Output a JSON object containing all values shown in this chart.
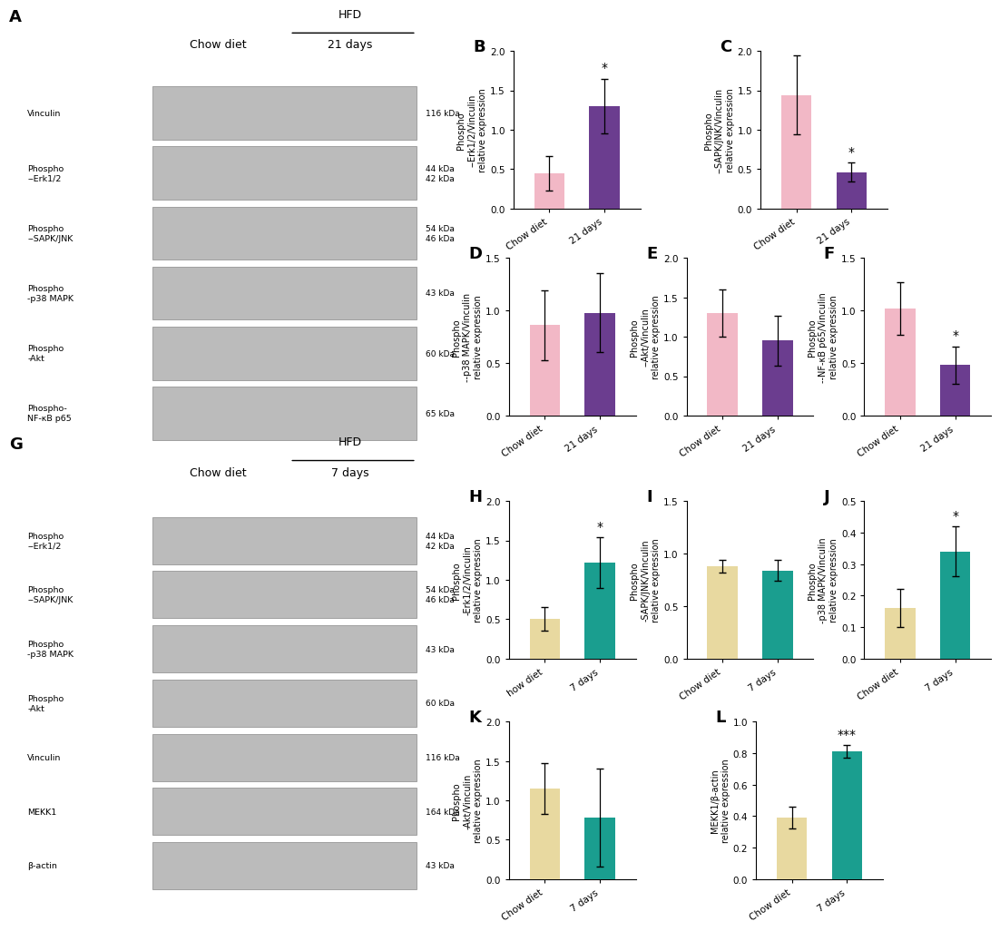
{
  "panels_top": {
    "B": {
      "title": "B",
      "ylabel": "Phospho\n--Erk1/2/Vinculin\nrelative expression",
      "categories": [
        "Chow diet",
        "21 days"
      ],
      "values": [
        0.45,
        1.3
      ],
      "errors": [
        0.22,
        0.35
      ],
      "colors": [
        "#f2b8c6",
        "#6b3d8f"
      ],
      "ylim": [
        0,
        2.0
      ],
      "yticks": [
        0.0,
        0.5,
        1.0,
        1.5,
        2.0
      ],
      "sig": {
        "bar": 1,
        "text": "*"
      }
    },
    "C": {
      "title": "C",
      "ylabel": "Phospho\n--SAPK/JNK/Vinculin\nrelative expression",
      "categories": [
        "Chow diet",
        "21 days"
      ],
      "values": [
        1.44,
        0.46
      ],
      "errors": [
        0.5,
        0.12
      ],
      "colors": [
        "#f2b8c6",
        "#6b3d8f"
      ],
      "ylim": [
        0,
        2.0
      ],
      "yticks": [
        0.0,
        0.5,
        1.0,
        1.5,
        2.0
      ],
      "sig": {
        "bar": 1,
        "text": "*"
      }
    },
    "D": {
      "title": "D",
      "ylabel": "Phospho\n--p38 MAPK/Vinculin\nrelative expression",
      "categories": [
        "Chow diet",
        "21 days"
      ],
      "values": [
        0.86,
        0.98
      ],
      "errors": [
        0.33,
        0.38
      ],
      "colors": [
        "#f2b8c6",
        "#6b3d8f"
      ],
      "ylim": [
        0,
        1.5
      ],
      "yticks": [
        0.0,
        0.5,
        1.0,
        1.5
      ],
      "sig": null
    },
    "E": {
      "title": "E",
      "ylabel": "Phospho\n--Akt/Vinculin\nrelative expression",
      "categories": [
        "Chow diet",
        "21 days"
      ],
      "values": [
        1.3,
        0.95
      ],
      "errors": [
        0.3,
        0.32
      ],
      "colors": [
        "#f2b8c6",
        "#6b3d8f"
      ],
      "ylim": [
        0,
        2.0
      ],
      "yticks": [
        0.0,
        0.5,
        1.0,
        1.5,
        2.0
      ],
      "sig": null
    },
    "F": {
      "title": "F",
      "ylabel": "Phospho\n--NF-κB p65/Vinculin\nrelative expression",
      "categories": [
        "Chow diet",
        "21 days"
      ],
      "values": [
        1.02,
        0.48
      ],
      "errors": [
        0.25,
        0.18
      ],
      "colors": [
        "#f2b8c6",
        "#6b3d8f"
      ],
      "ylim": [
        0,
        1.5
      ],
      "yticks": [
        0.0,
        0.5,
        1.0,
        1.5
      ],
      "sig": {
        "bar": 1,
        "text": "*"
      }
    }
  },
  "panels_bottom": {
    "H": {
      "title": "H",
      "ylabel": "Phospho\n-Erk1/2/Vinculin\nrelative expression",
      "categories": [
        "how diet",
        "7 days"
      ],
      "values": [
        0.5,
        1.22
      ],
      "errors": [
        0.15,
        0.32
      ],
      "colors": [
        "#e8d9a0",
        "#1a9e8f"
      ],
      "ylim": [
        0,
        2.0
      ],
      "yticks": [
        0.0,
        0.5,
        1.0,
        1.5,
        2.0
      ],
      "sig": {
        "bar": 1,
        "text": "*"
      }
    },
    "I": {
      "title": "I",
      "ylabel": "Phospho\n-SAPK/JNK/Vinculin\nrelative expression",
      "categories": [
        "Chow diet",
        "7 days"
      ],
      "values": [
        0.88,
        0.84
      ],
      "errors": [
        0.06,
        0.1
      ],
      "colors": [
        "#e8d9a0",
        "#1a9e8f"
      ],
      "ylim": [
        0,
        1.5
      ],
      "yticks": [
        0.0,
        0.5,
        1.0,
        1.5
      ],
      "sig": null
    },
    "J": {
      "title": "J",
      "ylabel": "Phospho\n-p38 MAPK/Vinculin\nrelative expression",
      "categories": [
        "Chow diet",
        "7 days"
      ],
      "values": [
        0.16,
        0.34
      ],
      "errors": [
        0.06,
        0.08
      ],
      "colors": [
        "#e8d9a0",
        "#1a9e8f"
      ],
      "ylim": [
        0,
        0.5
      ],
      "yticks": [
        0.0,
        0.1,
        0.2,
        0.3,
        0.4,
        0.5
      ],
      "sig": {
        "bar": 1,
        "text": "*"
      }
    },
    "K": {
      "title": "K",
      "ylabel": "Phospho\n-Akt/Vinculin\nrelative expression",
      "categories": [
        "Chow diet",
        "7 days"
      ],
      "values": [
        1.15,
        0.78
      ],
      "errors": [
        0.32,
        0.62
      ],
      "colors": [
        "#e8d9a0",
        "#1a9e8f"
      ],
      "ylim": [
        0,
        2.0
      ],
      "yticks": [
        0.0,
        0.5,
        1.0,
        1.5,
        2.0
      ],
      "sig": null
    },
    "L": {
      "title": "L",
      "ylabel": "MEKK1/β-actin\nrelative expression",
      "categories": [
        "Chow diet",
        "7 days"
      ],
      "values": [
        0.39,
        0.81
      ],
      "errors": [
        0.07,
        0.04
      ],
      "colors": [
        "#e8d9a0",
        "#1a9e8f"
      ],
      "ylim": [
        0,
        1.0
      ],
      "yticks": [
        0.0,
        0.2,
        0.4,
        0.6,
        0.8,
        1.0
      ],
      "sig": {
        "bar": 1,
        "text": "***"
      }
    }
  },
  "blot_A": {
    "title": "A",
    "labels": [
      "Vinculin",
      "Phospho\n--Erk1/2",
      "Phospho\n--SAPK/JNK",
      "Phospho\n-p38 MAPK",
      "Phospho\n-Akt",
      "Phospho-\nNF-κB p65"
    ],
    "kda": [
      "116 kDa",
      "44 kDa\n42 kDa",
      "54 kDa\n46 kDa",
      "43 kDa",
      "60 kDa",
      "65 kDa"
    ],
    "header_chow": "Chow diet",
    "header_hfd_top": "HFD",
    "header_hfd_bot": "21 days"
  },
  "blot_G": {
    "title": "G",
    "labels": [
      "Phospho\n--Erk1/2",
      "Phospho\n--SAPK/JNK",
      "Phospho\n-p38 MAPK",
      "Phospho\n-Akt",
      "Vinculin",
      "MEKK1",
      "β-actin"
    ],
    "kda": [
      "44 kDa\n42 kDa",
      "54 kDa\n46 kDa",
      "43 kDa",
      "60 kDa",
      "116 kDa",
      "164 kDa",
      "43 kDa"
    ],
    "header_chow": "Chow diet",
    "header_hfd_top": "HFD",
    "header_hfd_bot": "7 days"
  }
}
